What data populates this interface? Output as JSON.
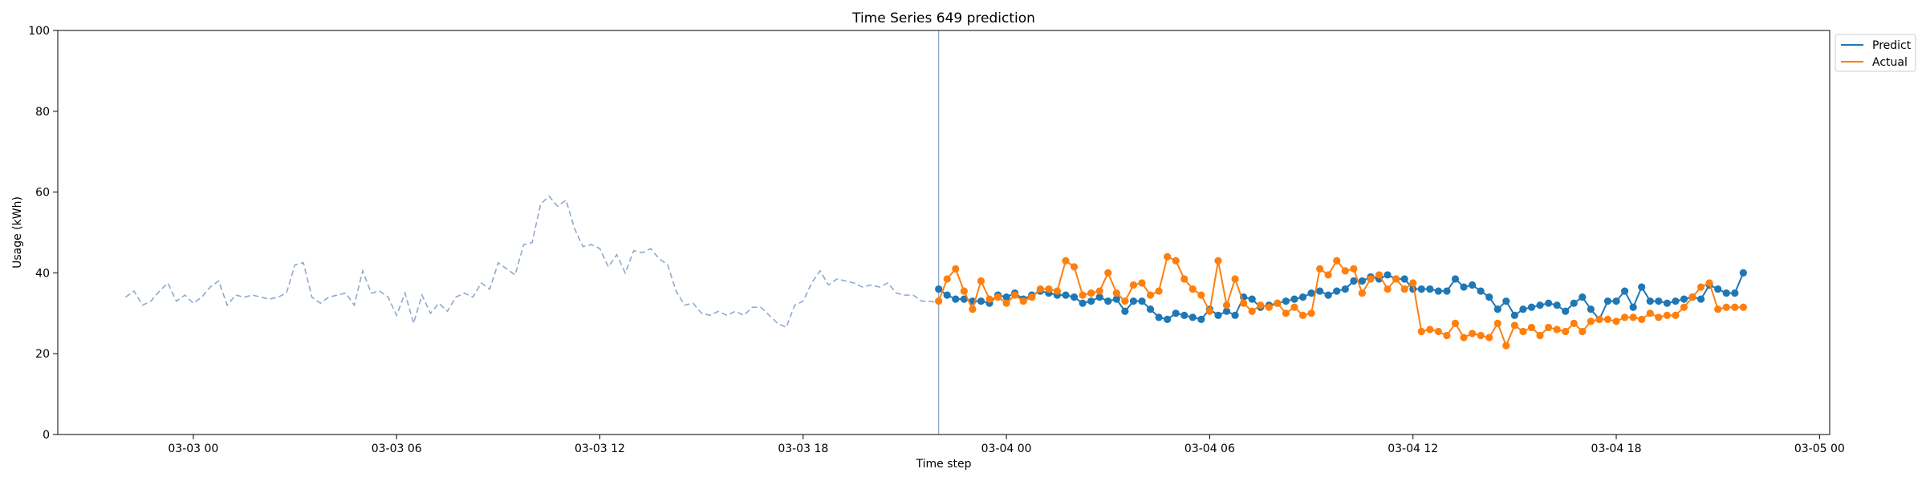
{
  "chart_data": {
    "type": "line",
    "title": "Time Series 649 prediction",
    "xlabel": "Time step",
    "ylabel": "Usage (kWh)",
    "ylim": [
      0,
      100
    ],
    "y_ticks": [
      0,
      20,
      40,
      60,
      80,
      100
    ],
    "x_tick_labels": [
      "03-03 00",
      "03-03 06",
      "03-03 12",
      "03-03 18",
      "03-04 00",
      "03-04 06",
      "03-04 12",
      "03-04 18",
      "03-05 00"
    ],
    "x_ticks_hours": [
      0,
      6,
      12,
      18,
      24,
      30,
      36,
      42,
      48
    ],
    "xlim_hours": [
      -4.0,
      48.3
    ],
    "grid": false,
    "legend_position": "outside-top-right",
    "forecast_start_hour": 22.0,
    "series": [
      {
        "name": "",
        "style": "dashed",
        "color": "#8fa9cc",
        "start_hour": -2.0,
        "step_hours": 0.25,
        "values": [
          34.0,
          35.5,
          32.0,
          33.0,
          35.5,
          37.5,
          33.0,
          34.5,
          32.5,
          34.0,
          36.5,
          38.0,
          32.0,
          34.5,
          34.0,
          34.5,
          34.0,
          33.5,
          34.0,
          35.0,
          42.0,
          42.5,
          34.0,
          32.5,
          34.0,
          34.5,
          35.0,
          32.0,
          40.5,
          35.0,
          35.5,
          34.0,
          29.5,
          35.0,
          27.5,
          34.5,
          30.0,
          32.5,
          30.5,
          34.0,
          35.0,
          34.0,
          37.5,
          36.0,
          42.5,
          41.0,
          39.5,
          47.0,
          47.5,
          57.0,
          59.0,
          56.5,
          58.0,
          51.0,
          46.5,
          47.0,
          46.0,
          41.5,
          44.5,
          40.0,
          45.5,
          45.0,
          46.0,
          43.5,
          42.0,
          35.5,
          32.0,
          32.5,
          30.0,
          29.5,
          30.5,
          29.5,
          30.5,
          29.5,
          31.5,
          31.5,
          29.5,
          27.5,
          26.5,
          32.0,
          33.0,
          37.5,
          40.5,
          37.0,
          38.5,
          38.0,
          37.5,
          36.5,
          37.0,
          36.5,
          37.5,
          35.0,
          34.5,
          34.5,
          33.0,
          33.0,
          32.5
        ]
      },
      {
        "name": "Predict",
        "style": "solid-markers",
        "color": "#1f77b4",
        "start_hour": 22.0,
        "step_hours": 0.25,
        "values": [
          36.0,
          34.5,
          33.5,
          33.5,
          33.0,
          33.0,
          32.5,
          34.5,
          34.0,
          35.0,
          33.5,
          34.5,
          35.5,
          35.0,
          34.5,
          34.5,
          34.0,
          32.5,
          33.0,
          34.0,
          33.0,
          33.5,
          30.5,
          33.0,
          33.0,
          31.0,
          29.0,
          28.5,
          30.0,
          29.5,
          29.0,
          28.5,
          31.0,
          29.5,
          30.5,
          29.5,
          34.0,
          33.5,
          31.5,
          32.0,
          32.5,
          33.0,
          33.5,
          34.0,
          35.0,
          35.5,
          34.5,
          35.5,
          36.0,
          38.0,
          38.0,
          39.0,
          38.5,
          39.5,
          38.5,
          38.5,
          36.0,
          36.0,
          36.0,
          35.5,
          35.5,
          38.5,
          36.5,
          37.0,
          35.5,
          34.0,
          31.0,
          33.0,
          29.5,
          31.0,
          31.5,
          32.0,
          32.5,
          32.0,
          30.5,
          32.5,
          34.0,
          31.0,
          28.5,
          33.0,
          33.0,
          35.5,
          31.5,
          36.5,
          33.0,
          33.0,
          32.5,
          33.0,
          33.5,
          34.0,
          33.5,
          37.0,
          36.0,
          35.0,
          35.0,
          40.0
        ]
      },
      {
        "name": "Actual",
        "style": "solid-markers",
        "color": "#ff7f0e",
        "start_hour": 22.0,
        "step_hours": 0.25,
        "values": [
          33.0,
          38.5,
          41.0,
          35.5,
          31.0,
          38.0,
          33.5,
          34.0,
          32.5,
          34.5,
          33.0,
          34.0,
          36.0,
          36.0,
          35.5,
          43.0,
          41.5,
          34.5,
          35.0,
          35.5,
          40.0,
          35.0,
          33.0,
          37.0,
          37.5,
          34.5,
          35.5,
          44.0,
          43.0,
          38.5,
          36.0,
          34.5,
          30.5,
          43.0,
          32.0,
          38.5,
          32.5,
          30.5,
          32.0,
          31.5,
          32.5,
          30.0,
          31.5,
          29.5,
          30.0,
          41.0,
          39.5,
          43.0,
          40.5,
          41.0,
          35.0,
          38.5,
          39.5,
          36.0,
          38.5,
          36.0,
          37.5,
          25.5,
          26.0,
          25.5,
          24.5,
          27.5,
          24.0,
          25.0,
          24.5,
          24.0,
          27.5,
          22.0,
          27.0,
          25.5,
          26.5,
          24.5,
          26.5,
          26.0,
          25.5,
          27.5,
          25.5,
          28.0,
          28.5,
          28.5,
          28.0,
          29.0,
          29.0,
          28.5,
          30.0,
          29.0,
          29.5,
          29.5,
          31.5,
          34.0,
          36.5,
          37.5,
          31.0,
          31.5,
          31.5,
          31.5
        ]
      }
    ],
    "legend": [
      "Predict",
      "Actual"
    ]
  }
}
